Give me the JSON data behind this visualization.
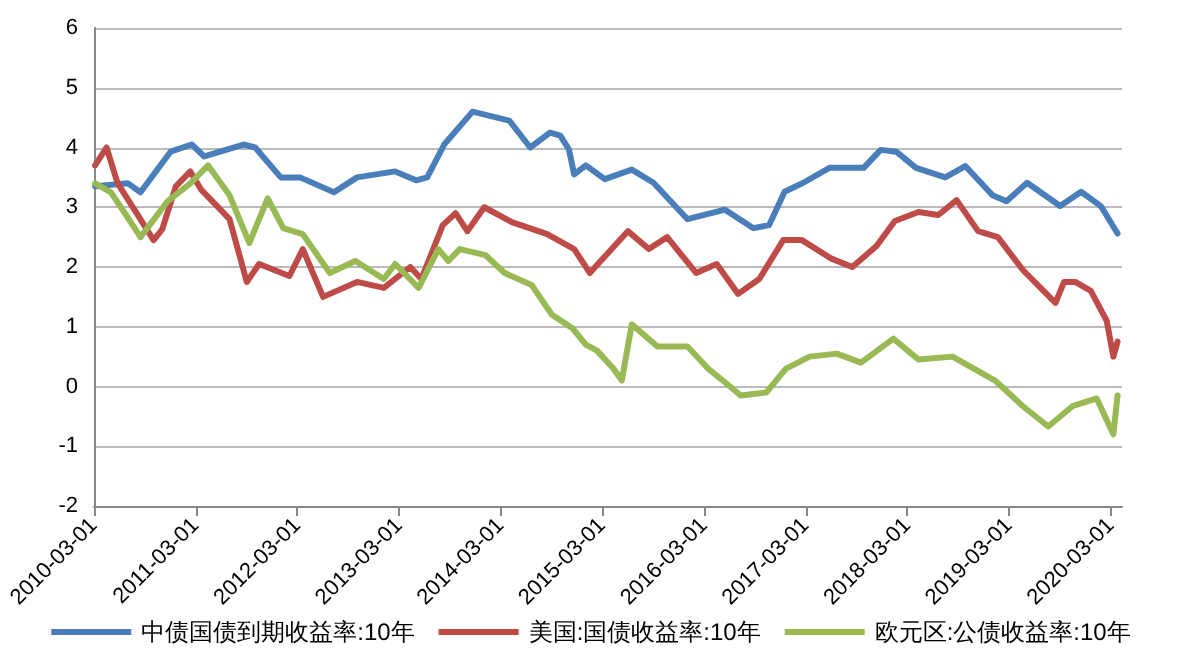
{
  "chart_data": {
    "type": "line",
    "legend": "bottom",
    "grid": "y",
    "marker": "none",
    "line_style": "solid",
    "ylim": [
      -2,
      6
    ],
    "yticks": [
      -2,
      -1,
      0,
      1,
      2,
      3,
      4,
      5,
      6
    ],
    "xlim": [
      "2010-03-01",
      "2020-04-10"
    ],
    "xticks": [
      "2010-03-01",
      "2011-03-01",
      "2012-03-01",
      "2013-03-01",
      "2014-03-01",
      "2015-03-01",
      "2016-03-01",
      "2017-03-01",
      "2018-03-01",
      "2019-03-01",
      "2020-03-01"
    ],
    "series": [
      {
        "name": "中债国债到期收益率:10年",
        "color": "#4a7ebb",
        "x": [
          "2010-03-05",
          "2010-07-01",
          "2010-08-15",
          "2010-12-01",
          "2011-02-15",
          "2011-04-01",
          "2011-08-20",
          "2011-10-01",
          "2012-01-01",
          "2012-03-10",
          "2012-07-10",
          "2012-10-01",
          "2013-02-15",
          "2013-05-01",
          "2013-06-10",
          "2013-08-10",
          "2013-11-20",
          "2014-04-01",
          "2014-06-15",
          "2014-08-25",
          "2014-10-01",
          "2014-11-01",
          "2014-11-20",
          "2015-01-01",
          "2015-03-10",
          "2015-06-15",
          "2015-09-01",
          "2016-01-01",
          "2016-05-15",
          "2016-08-25",
          "2016-10-20",
          "2016-12-15",
          "2017-02-20",
          "2017-05-25",
          "2017-09-25",
          "2017-11-25",
          "2018-01-20",
          "2018-04-01",
          "2018-07-15",
          "2018-09-25",
          "2019-01-01",
          "2019-02-20",
          "2019-05-05",
          "2019-09-01",
          "2019-11-15",
          "2020-01-25",
          "2020-03-25"
        ],
        "values": [
          3.35,
          3.4,
          3.25,
          3.93,
          4.05,
          3.85,
          4.05,
          4.0,
          3.5,
          3.5,
          3.25,
          3.5,
          3.6,
          3.45,
          3.5,
          4.05,
          4.6,
          4.45,
          4.0,
          4.25,
          4.2,
          3.97,
          3.55,
          3.7,
          3.47,
          3.63,
          3.41,
          2.8,
          2.96,
          2.65,
          2.7,
          3.26,
          3.41,
          3.66,
          3.66,
          3.96,
          3.93,
          3.66,
          3.5,
          3.69,
          3.2,
          3.1,
          3.41,
          3.02,
          3.26,
          3.02,
          2.56
        ]
      },
      {
        "name": "美国:国债收益率:10年",
        "color": "#be4b48",
        "x": [
          "2010-03-05",
          "2010-04-15",
          "2010-05-25",
          "2010-08-01",
          "2010-10-01",
          "2010-11-01",
          "2010-12-20",
          "2011-02-10",
          "2011-03-20",
          "2011-07-01",
          "2011-09-01",
          "2011-10-15",
          "2012-02-01",
          "2012-03-20",
          "2012-06-01",
          "2012-10-01",
          "2013-01-05",
          "2013-04-10",
          "2013-05-20",
          "2013-08-05",
          "2013-09-20",
          "2013-11-01",
          "2014-01-01",
          "2014-04-10",
          "2014-08-15",
          "2014-11-20",
          "2015-01-15",
          "2015-06-01",
          "2015-08-15",
          "2015-10-20",
          "2016-02-01",
          "2016-04-15",
          "2016-07-01",
          "2016-09-15",
          "2016-12-10",
          "2017-02-15",
          "2017-06-01",
          "2017-08-15",
          "2017-11-10",
          "2018-01-15",
          "2018-04-10",
          "2018-06-20",
          "2018-08-25",
          "2018-11-10",
          "2019-01-20",
          "2019-04-20",
          "2019-08-15",
          "2019-09-15",
          "2019-10-25",
          "2019-12-20",
          "2020-02-15",
          "2020-03-10",
          "2020-03-25"
        ],
        "values": [
          3.7,
          4.0,
          3.4,
          2.9,
          2.45,
          2.63,
          3.35,
          3.6,
          3.3,
          2.8,
          1.75,
          2.05,
          1.85,
          2.3,
          1.5,
          1.75,
          1.65,
          2.0,
          1.8,
          2.7,
          2.9,
          2.6,
          3.0,
          2.75,
          2.55,
          2.3,
          1.9,
          2.6,
          2.3,
          2.5,
          1.9,
          2.05,
          1.55,
          1.8,
          2.45,
          2.45,
          2.14,
          2.0,
          2.35,
          2.77,
          2.92,
          2.87,
          3.12,
          2.6,
          2.5,
          1.95,
          1.4,
          1.75,
          1.75,
          1.6,
          1.1,
          0.5,
          0.75
        ]
      },
      {
        "name": "欧元区:公债收益率:10年",
        "color": "#98b954",
        "x": [
          "2010-03-05",
          "2010-05-01",
          "2010-06-20",
          "2010-08-15",
          "2010-09-25",
          "2010-11-20",
          "2011-02-10",
          "2011-04-15",
          "2011-07-01",
          "2011-09-10",
          "2011-11-15",
          "2012-01-10",
          "2012-03-20",
          "2012-06-25",
          "2012-09-25",
          "2013-01-05",
          "2013-02-15",
          "2013-05-10",
          "2013-07-20",
          "2013-08-25",
          "2013-10-05",
          "2014-01-05",
          "2014-03-15",
          "2014-06-20",
          "2014-09-01",
          "2014-11-15",
          "2015-01-01",
          "2015-02-10",
          "2015-04-10",
          "2015-05-10",
          "2015-06-15",
          "2015-09-15",
          "2016-01-01",
          "2016-03-15",
          "2016-05-20",
          "2016-07-10",
          "2016-10-10",
          "2016-12-20",
          "2017-03-15",
          "2017-06-20",
          "2017-09-15",
          "2018-01-10",
          "2018-04-10",
          "2018-08-10",
          "2019-01-10",
          "2019-04-20",
          "2019-07-20",
          "2019-10-15",
          "2020-01-10",
          "2020-03-10",
          "2020-03-25"
        ],
        "values": [
          3.4,
          3.25,
          2.9,
          2.5,
          2.75,
          3.1,
          3.4,
          3.7,
          3.2,
          2.4,
          3.15,
          2.65,
          2.55,
          1.9,
          2.1,
          1.8,
          2.05,
          1.65,
          2.3,
          2.1,
          2.3,
          2.2,
          1.9,
          1.7,
          1.2,
          0.97,
          0.7,
          0.6,
          0.3,
          0.1,
          1.04,
          0.67,
          0.67,
          0.3,
          0.05,
          -0.15,
          -0.1,
          0.3,
          0.5,
          0.55,
          0.4,
          0.8,
          0.45,
          0.5,
          0.1,
          -0.33,
          -0.67,
          -0.33,
          -0.2,
          -0.8,
          -0.15
        ]
      }
    ]
  }
}
